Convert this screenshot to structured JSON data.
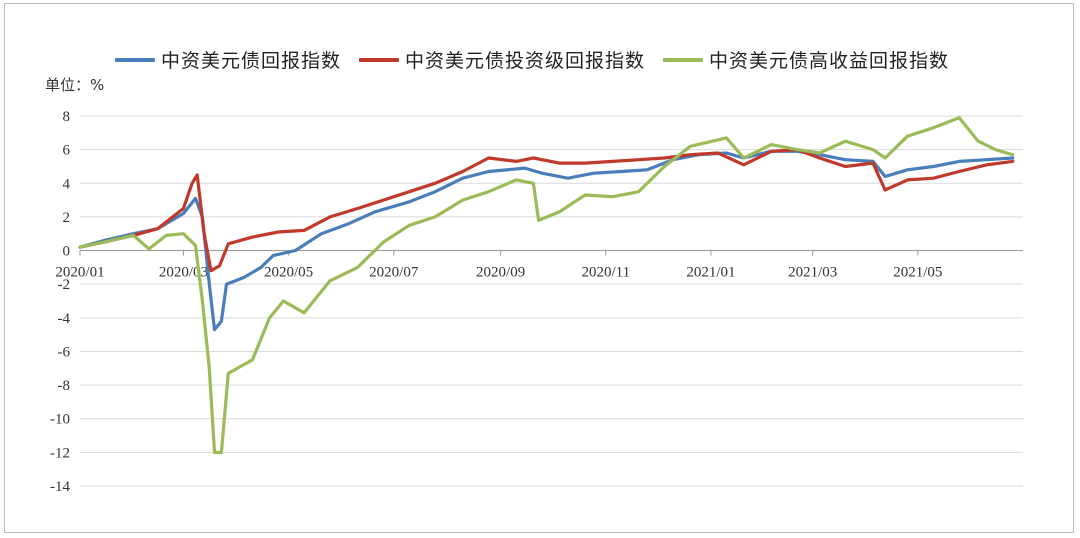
{
  "chart_data": {
    "type": "line",
    "title": "",
    "unit_label": "单位：%",
    "ylim": [
      -14,
      8
    ],
    "yticks": [
      8,
      6,
      4,
      2,
      0,
      -2,
      -4,
      -6,
      -8,
      -10,
      -12,
      -14
    ],
    "xtick_labels": [
      "2020/01",
      "2020/03",
      "2020/05",
      "2020/07",
      "2020/09",
      "2020/11",
      "2021/01",
      "2021/03",
      "2021/05"
    ],
    "x_start": "2020/01",
    "x_end": "2021/06",
    "grid": true,
    "legend_position": "top",
    "series": [
      {
        "name": "中资美元债回报指数",
        "color": "#4a7ebb",
        "points": [
          [
            "2020-01-01",
            0.2
          ],
          [
            "2020-01-15",
            0.6
          ],
          [
            "2020-02-01",
            1.0
          ],
          [
            "2020-02-15",
            1.3
          ],
          [
            "2020-03-01",
            2.2
          ],
          [
            "2020-03-08",
            3.1
          ],
          [
            "2020-03-12",
            2.0
          ],
          [
            "2020-03-16",
            -2.0
          ],
          [
            "2020-03-19",
            -4.7
          ],
          [
            "2020-03-23",
            -4.2
          ],
          [
            "2020-03-26",
            -2.0
          ],
          [
            "2020-04-05",
            -1.6
          ],
          [
            "2020-04-15",
            -1.0
          ],
          [
            "2020-04-22",
            -0.3
          ],
          [
            "2020-05-05",
            0.0
          ],
          [
            "2020-05-20",
            1.0
          ],
          [
            "2020-06-05",
            1.6
          ],
          [
            "2020-06-20",
            2.3
          ],
          [
            "2020-07-10",
            2.9
          ],
          [
            "2020-07-25",
            3.5
          ],
          [
            "2020-08-10",
            4.3
          ],
          [
            "2020-08-25",
            4.7
          ],
          [
            "2020-09-15",
            4.9
          ],
          [
            "2020-09-25",
            4.6
          ],
          [
            "2020-10-10",
            4.3
          ],
          [
            "2020-10-25",
            4.6
          ],
          [
            "2020-11-10",
            4.7
          ],
          [
            "2020-11-25",
            4.8
          ],
          [
            "2020-12-10",
            5.4
          ],
          [
            "2020-12-25",
            5.7
          ],
          [
            "2021-01-10",
            5.8
          ],
          [
            "2021-01-20",
            5.5
          ],
          [
            "2021-02-05",
            5.9
          ],
          [
            "2021-02-20",
            5.9
          ],
          [
            "2021-03-05",
            5.7
          ],
          [
            "2021-03-20",
            5.4
          ],
          [
            "2021-04-05",
            5.3
          ],
          [
            "2021-04-12",
            4.4
          ],
          [
            "2021-04-25",
            4.8
          ],
          [
            "2021-05-10",
            5.0
          ],
          [
            "2021-05-25",
            5.3
          ],
          [
            "2021-06-10",
            5.4
          ],
          [
            "2021-06-25",
            5.5
          ]
        ]
      },
      {
        "name": "中资美元债投资级回报指数",
        "color": "#c0392b",
        "points": [
          [
            "2020-01-01",
            0.2
          ],
          [
            "2020-01-15",
            0.5
          ],
          [
            "2020-02-01",
            0.9
          ],
          [
            "2020-02-15",
            1.3
          ],
          [
            "2020-03-01",
            2.5
          ],
          [
            "2020-03-06",
            4.0
          ],
          [
            "2020-03-09",
            4.5
          ],
          [
            "2020-03-13",
            1.0
          ],
          [
            "2020-03-17",
            -1.2
          ],
          [
            "2020-03-22",
            -0.9
          ],
          [
            "2020-03-27",
            0.4
          ],
          [
            "2020-04-10",
            0.8
          ],
          [
            "2020-04-25",
            1.1
          ],
          [
            "2020-05-10",
            1.2
          ],
          [
            "2020-05-25",
            2.0
          ],
          [
            "2020-06-10",
            2.5
          ],
          [
            "2020-06-25",
            3.0
          ],
          [
            "2020-07-10",
            3.5
          ],
          [
            "2020-07-25",
            4.0
          ],
          [
            "2020-08-10",
            4.7
          ],
          [
            "2020-08-25",
            5.5
          ],
          [
            "2020-09-10",
            5.3
          ],
          [
            "2020-09-20",
            5.5
          ],
          [
            "2020-10-05",
            5.2
          ],
          [
            "2020-10-20",
            5.2
          ],
          [
            "2020-11-05",
            5.3
          ],
          [
            "2020-11-20",
            5.4
          ],
          [
            "2020-12-05",
            5.5
          ],
          [
            "2020-12-20",
            5.7
          ],
          [
            "2021-01-05",
            5.8
          ],
          [
            "2021-01-20",
            5.1
          ],
          [
            "2021-02-05",
            5.9
          ],
          [
            "2021-02-20",
            6.0
          ],
          [
            "2021-03-05",
            5.5
          ],
          [
            "2021-03-20",
            5.0
          ],
          [
            "2021-04-05",
            5.2
          ],
          [
            "2021-04-12",
            3.6
          ],
          [
            "2021-04-25",
            4.2
          ],
          [
            "2021-05-10",
            4.3
          ],
          [
            "2021-05-25",
            4.7
          ],
          [
            "2021-06-10",
            5.1
          ],
          [
            "2021-06-25",
            5.3
          ]
        ]
      },
      {
        "name": "中资美元债高收益回报指数",
        "color": "#9bbb59",
        "points": [
          [
            "2020-01-01",
            0.2
          ],
          [
            "2020-01-15",
            0.5
          ],
          [
            "2020-02-01",
            0.9
          ],
          [
            "2020-02-10",
            0.1
          ],
          [
            "2020-02-20",
            0.9
          ],
          [
            "2020-03-01",
            1.0
          ],
          [
            "2020-03-08",
            0.3
          ],
          [
            "2020-03-12",
            -3.0
          ],
          [
            "2020-03-16",
            -7.0
          ],
          [
            "2020-03-19",
            -12.0
          ],
          [
            "2020-03-23",
            -12.0
          ],
          [
            "2020-03-27",
            -7.3
          ],
          [
            "2020-04-10",
            -6.5
          ],
          [
            "2020-04-20",
            -4.0
          ],
          [
            "2020-04-28",
            -3.0
          ],
          [
            "2020-05-10",
            -3.7
          ],
          [
            "2020-05-25",
            -1.8
          ],
          [
            "2020-06-10",
            -1.0
          ],
          [
            "2020-06-25",
            0.5
          ],
          [
            "2020-07-10",
            1.5
          ],
          [
            "2020-07-25",
            2.0
          ],
          [
            "2020-08-10",
            3.0
          ],
          [
            "2020-08-25",
            3.5
          ],
          [
            "2020-09-10",
            4.2
          ],
          [
            "2020-09-20",
            4.0
          ],
          [
            "2020-09-23",
            1.8
          ],
          [
            "2020-10-05",
            2.3
          ],
          [
            "2020-10-20",
            3.3
          ],
          [
            "2020-11-05",
            3.2
          ],
          [
            "2020-11-20",
            3.5
          ],
          [
            "2020-12-05",
            5.0
          ],
          [
            "2020-12-20",
            6.2
          ],
          [
            "2021-01-10",
            6.7
          ],
          [
            "2021-01-20",
            5.5
          ],
          [
            "2021-02-05",
            6.3
          ],
          [
            "2021-02-20",
            6.0
          ],
          [
            "2021-03-05",
            5.8
          ],
          [
            "2021-03-20",
            6.5
          ],
          [
            "2021-04-05",
            6.0
          ],
          [
            "2021-04-12",
            5.5
          ],
          [
            "2021-04-25",
            6.8
          ],
          [
            "2021-05-10",
            7.3
          ],
          [
            "2021-05-25",
            7.9
          ],
          [
            "2021-06-05",
            6.5
          ],
          [
            "2021-06-15",
            6.0
          ],
          [
            "2021-06-25",
            5.7
          ]
        ]
      }
    ]
  }
}
